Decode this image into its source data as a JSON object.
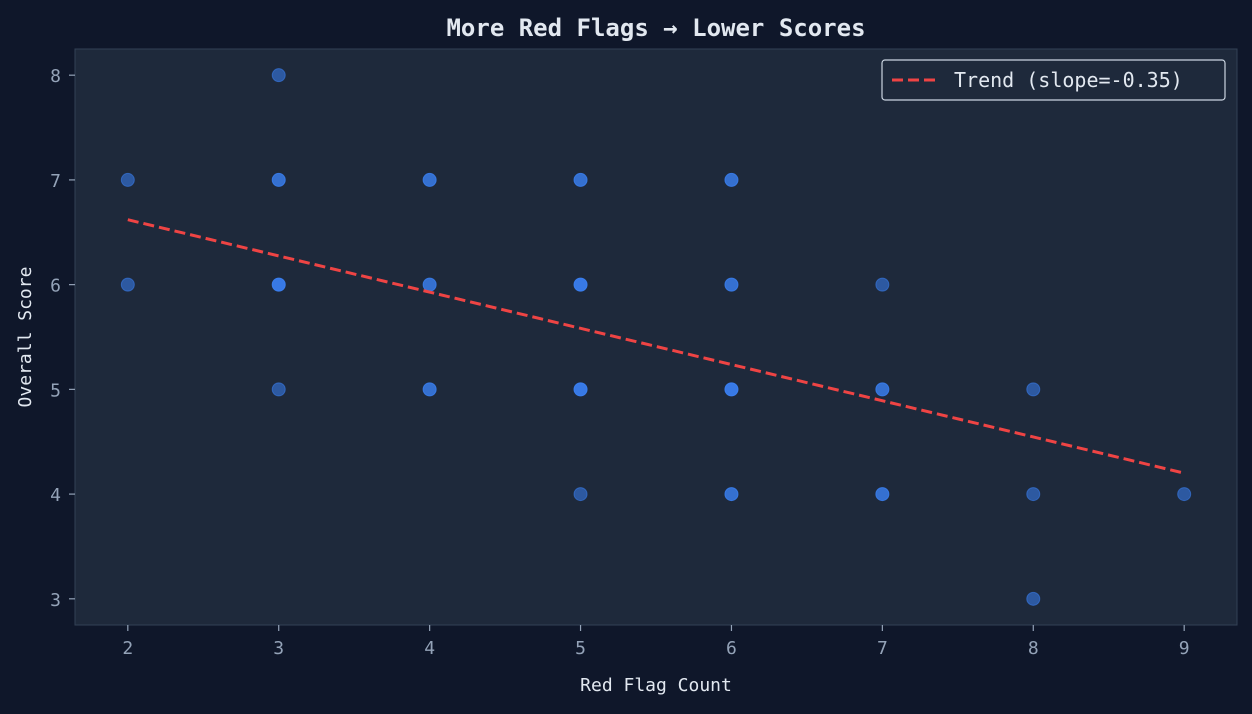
{
  "chart_data": {
    "type": "scatter",
    "title": "More Red Flags → Lower Scores",
    "xlabel": "Red Flag Count",
    "ylabel": "Overall Score",
    "xlim": [
      1.65,
      9.35
    ],
    "ylim": [
      2.75,
      8.25
    ],
    "xticks": [
      2,
      3,
      4,
      5,
      6,
      7,
      8,
      9
    ],
    "yticks": [
      3,
      4,
      5,
      6,
      7,
      8
    ],
    "grid": false,
    "legend_position": "top-right",
    "series": [
      {
        "marker_color": "#3b82f6",
        "points": [
          {
            "x": 2,
            "y": 7,
            "count": 1
          },
          {
            "x": 2,
            "y": 6,
            "count": 1
          },
          {
            "x": 3,
            "y": 8,
            "count": 1
          },
          {
            "x": 3,
            "y": 7,
            "count": 2
          },
          {
            "x": 3,
            "y": 6,
            "count": 3
          },
          {
            "x": 3,
            "y": 5,
            "count": 1
          },
          {
            "x": 4,
            "y": 7,
            "count": 2
          },
          {
            "x": 4,
            "y": 6,
            "count": 2
          },
          {
            "x": 4,
            "y": 5,
            "count": 2
          },
          {
            "x": 5,
            "y": 7,
            "count": 2
          },
          {
            "x": 5,
            "y": 6,
            "count": 3
          },
          {
            "x": 5,
            "y": 5,
            "count": 3
          },
          {
            "x": 5,
            "y": 4,
            "count": 1
          },
          {
            "x": 6,
            "y": 7,
            "count": 2
          },
          {
            "x": 6,
            "y": 6,
            "count": 2
          },
          {
            "x": 6,
            "y": 5,
            "count": 3
          },
          {
            "x": 6,
            "y": 4,
            "count": 2
          },
          {
            "x": 7,
            "y": 6,
            "count": 1
          },
          {
            "x": 7,
            "y": 5,
            "count": 2
          },
          {
            "x": 7,
            "y": 4,
            "count": 2
          },
          {
            "x": 8,
            "y": 5,
            "count": 1
          },
          {
            "x": 8,
            "y": 4,
            "count": 1
          },
          {
            "x": 8,
            "y": 3,
            "count": 1
          },
          {
            "x": 9,
            "y": 4,
            "count": 1
          }
        ]
      },
      {
        "name": "Trend (slope=-0.35)",
        "type": "line",
        "line_style": "dashed",
        "line_color": "#ef4444",
        "points": [
          {
            "x": 2,
            "y": 6.62
          },
          {
            "x": 9,
            "y": 4.2
          }
        ]
      }
    ]
  },
  "colors": {
    "page_background": "#0f172a",
    "plot_background": "#1e293b",
    "axis_spine": "#334155",
    "tick_text": "#94a3b8",
    "label_text": "#e2e8f0"
  }
}
